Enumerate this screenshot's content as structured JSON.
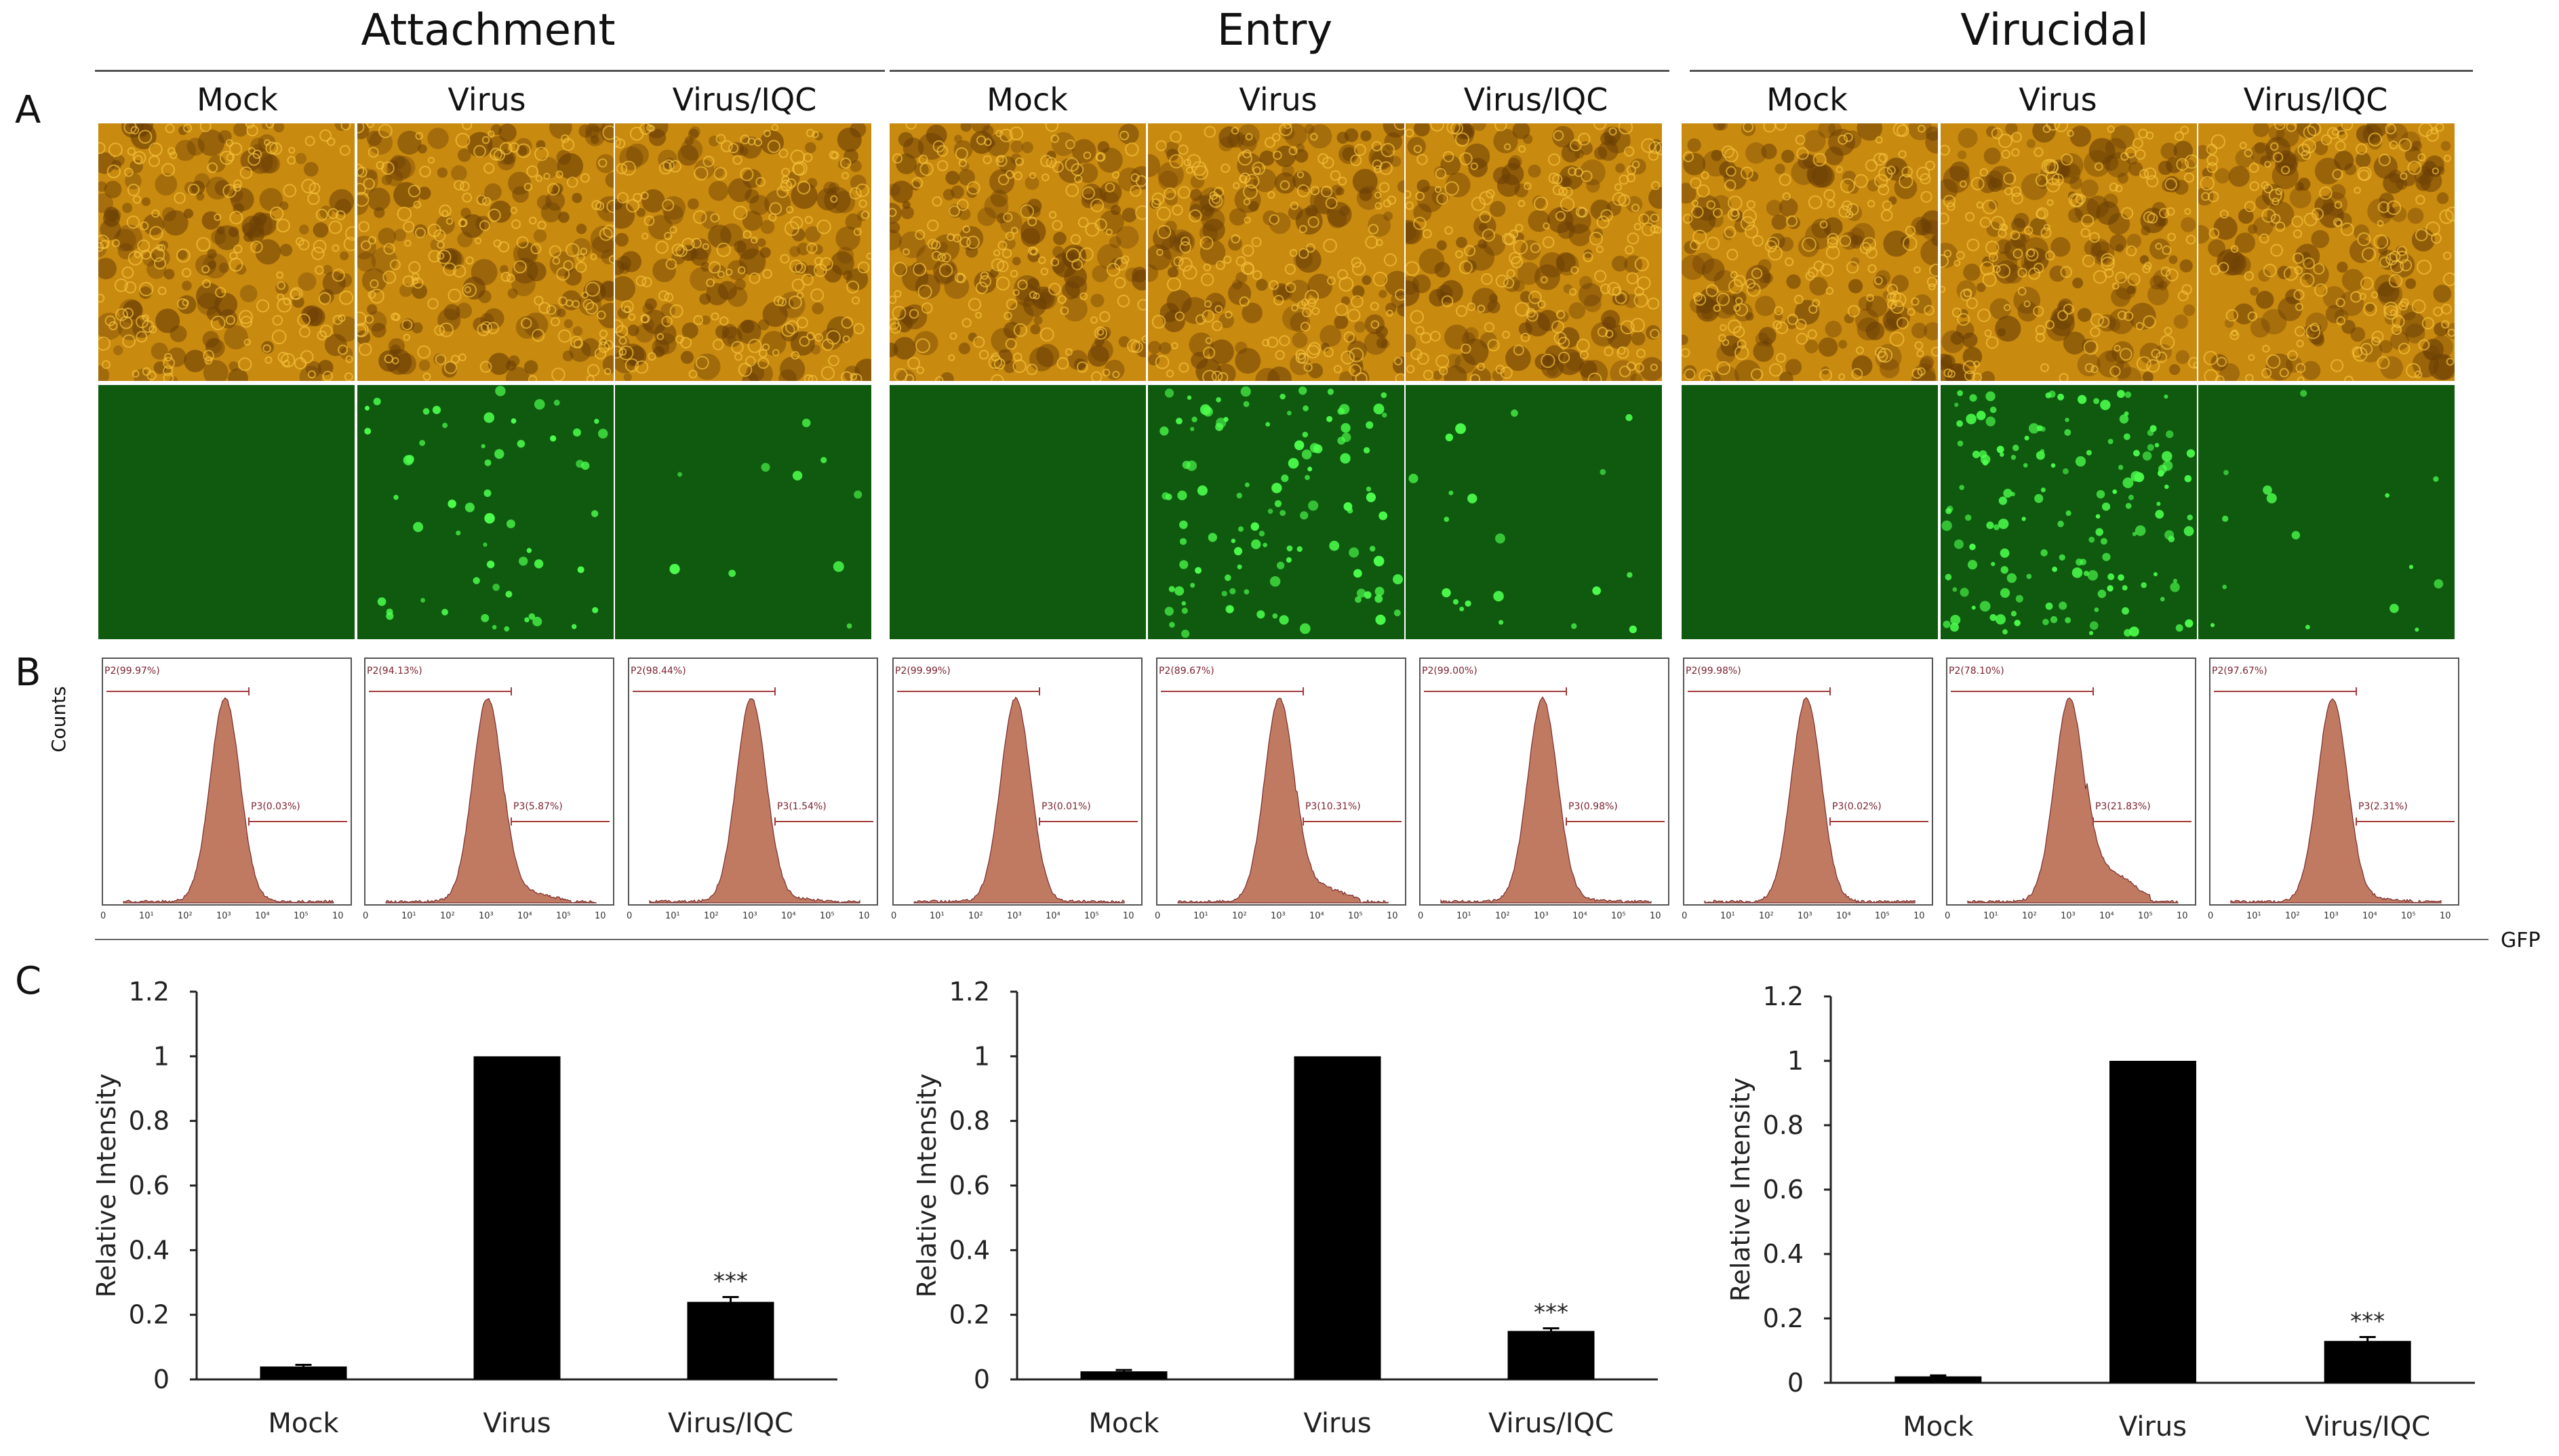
{
  "panel_letters": {
    "a": "A",
    "b": "B",
    "c": "C"
  },
  "groups": [
    {
      "title": "Attachment",
      "columns": [
        "Mock",
        "Virus",
        "Virus/IQC"
      ]
    },
    {
      "title": "Entry",
      "columns": [
        "Mock",
        "Virus",
        "Virus/IQC"
      ]
    },
    {
      "title": "Virucidal",
      "columns": [
        "Mock",
        "Virus",
        "Virus/IQC"
      ]
    }
  ],
  "microscopy": {
    "brightfield_color": "#c98a10",
    "brightfield_dark": "#6b3f05",
    "fluorescence_bg": "#0f5a0f",
    "fluorescence_spot": "#4dff4d",
    "spot_density": [
      0,
      55,
      10,
      0,
      110,
      20,
      0,
      150,
      15
    ]
  },
  "flow": {
    "y_axis_label": "Counts",
    "x_axis_label": "GFP",
    "x_ticks": [
      "0",
      "10¹",
      "10²",
      "10³",
      "10⁴",
      "10⁵",
      "10"
    ],
    "histogram_fill": "#c07a62",
    "gate_color": "#a23b3b",
    "panels": [
      {
        "p2": "P2(99.97%)",
        "p3": "P3(0.03%)",
        "tail": 0
      },
      {
        "p2": "P2(94.13%)",
        "p3": "P3(5.87%)",
        "tail": 0.3
      },
      {
        "p2": "P2(98.44%)",
        "p3": "P3(1.54%)",
        "tail": 0.1
      },
      {
        "p2": "P2(99.99%)",
        "p3": "P3(0.01%)",
        "tail": 0
      },
      {
        "p2": "P2(89.67%)",
        "p3": "P3(10.31%)",
        "tail": 0.5
      },
      {
        "p2": "P2(99.00%)",
        "p3": "P3(0.98%)",
        "tail": 0.05
      },
      {
        "p2": "P2(99.98%)",
        "p3": "P3(0.02%)",
        "tail": 0
      },
      {
        "p2": "P2(78.10%)",
        "p3": "P3(21.83%)",
        "tail": 1
      },
      {
        "p2": "P2(97.67%)",
        "p3": "P3(2.31%)",
        "tail": 0.1
      }
    ]
  },
  "chart_data": [
    {
      "type": "bar",
      "title": "Attachment",
      "ylabel": "Relative  Intensity",
      "xlabel": "",
      "categories": [
        "Mock",
        "Virus",
        "Virus/IQC"
      ],
      "values": [
        0.04,
        1.0,
        0.24
      ],
      "errors": [
        0.005,
        0,
        0.015
      ],
      "significance": [
        "",
        "",
        "***"
      ],
      "ylim": [
        0,
        1.2
      ],
      "yticks": [
        "0",
        "0.2",
        "0.4",
        "0.6",
        "0.8",
        "1",
        "1.2"
      ]
    },
    {
      "type": "bar",
      "title": "Entry",
      "ylabel": "Relative  Intensity",
      "xlabel": "",
      "categories": [
        "Mock",
        "Virus",
        "Virus/IQC"
      ],
      "values": [
        0.025,
        1.0,
        0.15
      ],
      "errors": [
        0.004,
        0,
        0.008
      ],
      "significance": [
        "",
        "",
        "***"
      ],
      "ylim": [
        0,
        1.2
      ],
      "yticks": [
        "0",
        "0.2",
        "0.4",
        "0.6",
        "0.8",
        "1",
        "1.2"
      ]
    },
    {
      "type": "bar",
      "title": "Virucidal",
      "ylabel": "Relative  Intensity",
      "xlabel": "",
      "categories": [
        "Mock",
        "Virus",
        "Virus/IQC"
      ],
      "values": [
        0.02,
        1.0,
        0.13
      ],
      "errors": [
        0.003,
        0,
        0.012
      ],
      "significance": [
        "",
        "",
        "***"
      ],
      "ylim": [
        0,
        1.2
      ],
      "yticks": [
        "0",
        "0.2",
        "0.4",
        "0.6",
        "0.8",
        "1",
        "1.2"
      ]
    }
  ]
}
